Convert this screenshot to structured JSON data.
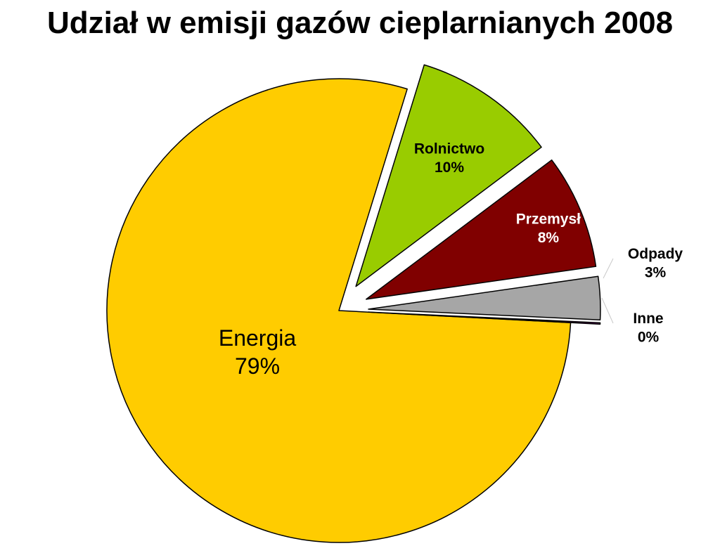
{
  "chart_data": {
    "type": "pie",
    "title": "Udział w emisji gazów cieplarnianych 2008",
    "slices": [
      {
        "name": "Energia",
        "value": 79,
        "label": "79%",
        "color": "#FFCC00",
        "exploded": false
      },
      {
        "name": "Rolnictwo",
        "value": 10,
        "label": "10%",
        "color": "#99CC00",
        "exploded": true
      },
      {
        "name": "Przemysł",
        "value": 8,
        "label": "8%",
        "color": "#800000",
        "exploded": true
      },
      {
        "name": "Odpady",
        "value": 3,
        "label": "3%",
        "color": "#A6A6A6",
        "exploded": true
      },
      {
        "name": "Inne",
        "value": 0,
        "label": "0%",
        "color": "#800080",
        "exploded": true
      }
    ],
    "legend": "none",
    "label_color_on_dark": "#FFFFFF",
    "label_color_on_light": "#000000",
    "outline_color": "#000000"
  }
}
